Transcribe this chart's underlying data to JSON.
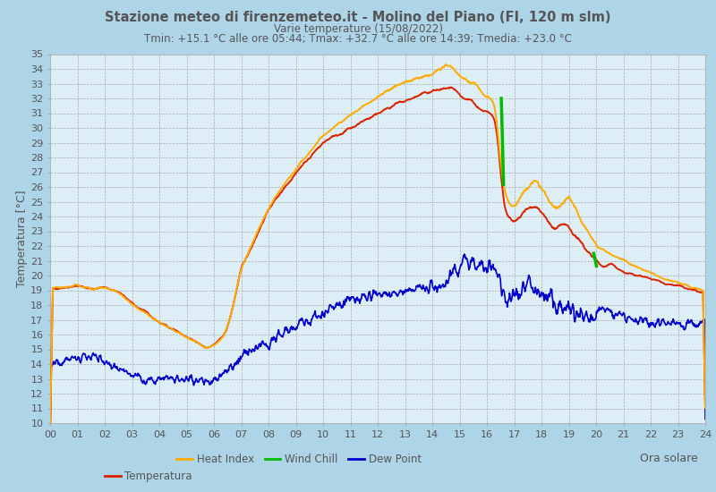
{
  "title": "Stazione meteo di firenzemeteo.it - Molino del Piano (FI, 120 m slm)",
  "subtitle1": "Varie temperature (15/08/2022)",
  "subtitle2": "Tmin: +15.1 °C alle ore 05:44; Tmax: +32.7 °C alle ore 14:39; Tmedia: +23.0 °C",
  "xlabel": "Ora solare",
  "ylabel": "Temperatura [°C]",
  "bg_color": "#aed4e8",
  "plot_bg_color": "#ddeef6",
  "grid_color": "#aaaaaa",
  "title_color": "#555555",
  "ylim": [
    10,
    35
  ],
  "xlim": [
    0,
    24
  ],
  "yticks": [
    10,
    11,
    12,
    13,
    14,
    15,
    16,
    17,
    18,
    19,
    20,
    21,
    22,
    23,
    24,
    25,
    26,
    27,
    28,
    29,
    30,
    31,
    32,
    33,
    34,
    35
  ],
  "xticks": [
    0,
    1,
    2,
    3,
    4,
    5,
    6,
    7,
    8,
    9,
    10,
    11,
    12,
    13,
    14,
    15,
    16,
    17,
    18,
    19,
    20,
    21,
    22,
    23,
    24
  ],
  "xticklabels": [
    "00",
    "01",
    "02",
    "03",
    "04",
    "05",
    "06",
    "07",
    "08",
    "09",
    "10",
    "11",
    "12",
    "13",
    "14",
    "15",
    "16",
    "17",
    "18",
    "19",
    "20",
    "21",
    "22",
    "23",
    "24"
  ],
  "color_temp": "#dd2200",
  "color_heat": "#ffaa00",
  "color_wind": "#00bb00",
  "color_dew": "#0000cc",
  "lw_temp": 1.4,
  "lw_heat": 1.4,
  "lw_wind": 2.5,
  "lw_dew": 1.2
}
